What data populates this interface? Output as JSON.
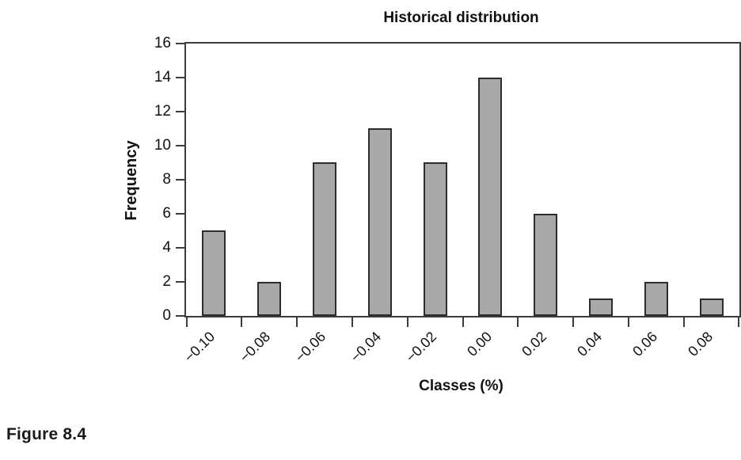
{
  "figure": {
    "caption": "Figure 8.4"
  },
  "chart_data": {
    "type": "bar",
    "title": "Historical distribution",
    "xlabel": "Classes (%)",
    "ylabel": "Frequency",
    "categories": [
      "−0.10",
      "−0.08",
      "−0.06",
      "−0.04",
      "−0.02",
      "0.00",
      "0.02",
      "0.04",
      "0.06",
      "0.08"
    ],
    "values": [
      5,
      2,
      9,
      11,
      9,
      14,
      6,
      1,
      2,
      1
    ],
    "ylim": [
      0,
      16
    ],
    "ytick_step": 2,
    "grid": false,
    "legend": "none",
    "bar_fill": "#a8a8a8",
    "bar_border": "#2d2d2d",
    "axis_color": "#3c3c3c",
    "text_color": "#111111"
  }
}
